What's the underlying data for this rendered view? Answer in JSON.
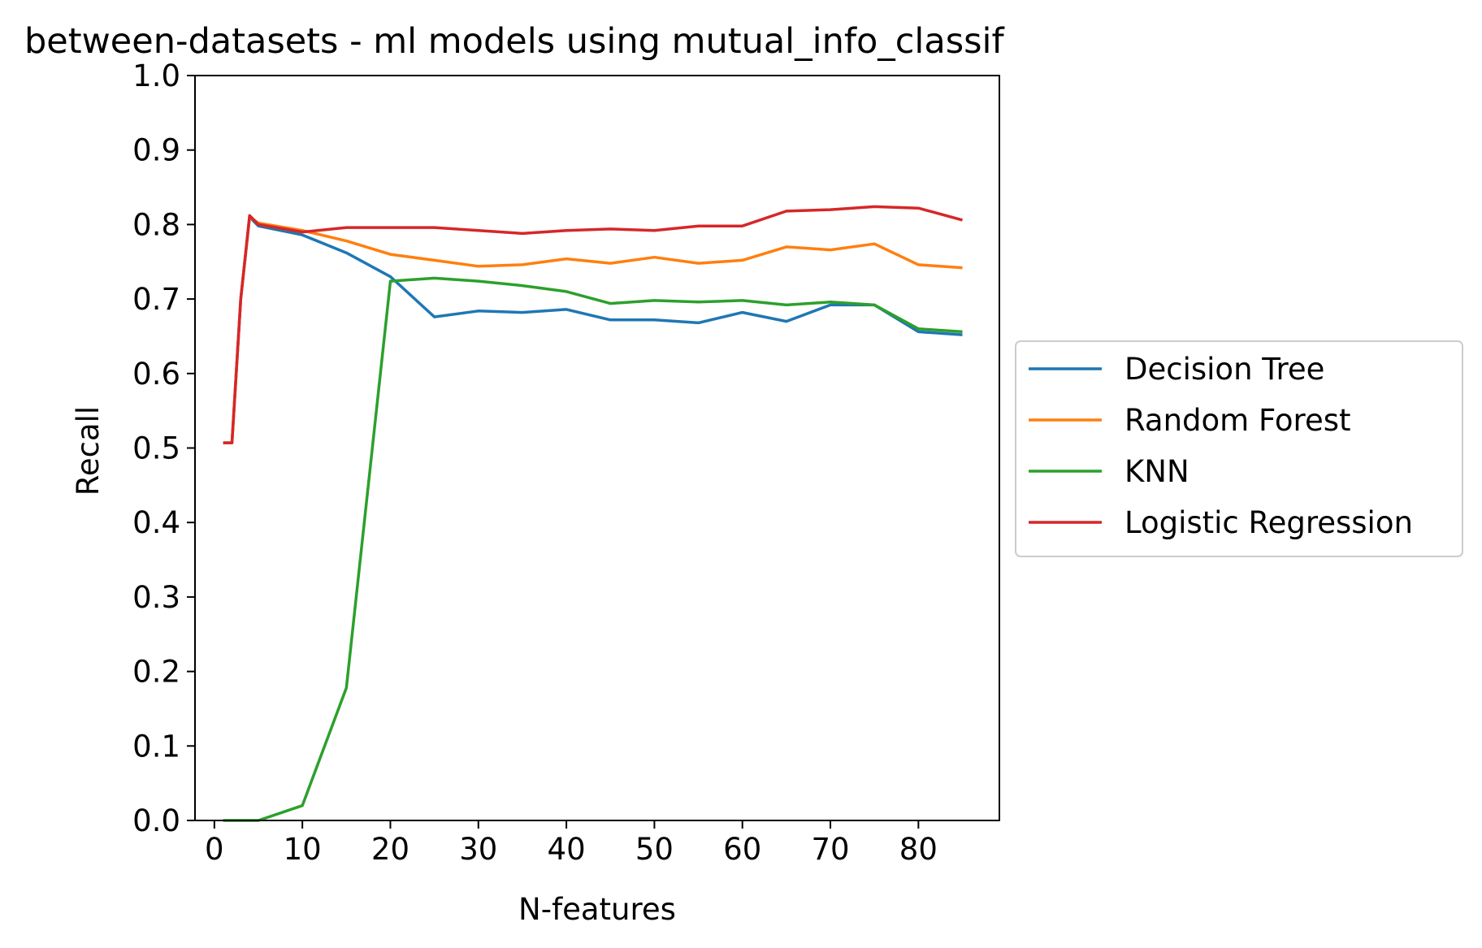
{
  "chart_data": {
    "type": "line",
    "title": "between-datasets - ml models using mutual_info_classif",
    "xlabel": "N-features",
    "ylabel": "Recall",
    "xlim": [
      -2.2,
      89.2
    ],
    "ylim": [
      0.0,
      1.0
    ],
    "xticks": [
      0,
      10,
      20,
      30,
      40,
      50,
      60,
      70,
      80
    ],
    "yticks": [
      0.0,
      0.1,
      0.2,
      0.3,
      0.4,
      0.5,
      0.6,
      0.7,
      0.8,
      0.9,
      1.0
    ],
    "xtick_labels": [
      "0",
      "10",
      "20",
      "30",
      "40",
      "50",
      "60",
      "70",
      "80"
    ],
    "ytick_labels": [
      "0.0",
      "0.1",
      "0.2",
      "0.3",
      "0.4",
      "0.5",
      "0.6",
      "0.7",
      "0.8",
      "0.9",
      "1.0"
    ],
    "grid": false,
    "legend_position": "outside-right",
    "series": [
      {
        "name": "Decision Tree",
        "color": "#1f77b4",
        "x": [
          1,
          2,
          3,
          4,
          5,
          10,
          15,
          20,
          25,
          30,
          35,
          40,
          45,
          50,
          55,
          60,
          65,
          70,
          75,
          80,
          85
        ],
        "values": [
          0.507,
          0.507,
          0.7,
          0.81,
          0.798,
          0.786,
          0.762,
          0.73,
          0.676,
          0.684,
          0.682,
          0.686,
          0.672,
          0.672,
          0.668,
          0.682,
          0.67,
          0.692,
          0.692,
          0.656,
          0.652
        ]
      },
      {
        "name": "Random Forest",
        "color": "#ff7f0e",
        "x": [
          1,
          2,
          3,
          4,
          5,
          10,
          15,
          20,
          25,
          30,
          35,
          40,
          45,
          50,
          55,
          60,
          65,
          70,
          75,
          80,
          85
        ],
        "values": [
          0.507,
          0.507,
          0.7,
          0.81,
          0.802,
          0.792,
          0.778,
          0.76,
          0.752,
          0.744,
          0.746,
          0.754,
          0.748,
          0.756,
          0.748,
          0.752,
          0.77,
          0.766,
          0.774,
          0.746,
          0.742
        ]
      },
      {
        "name": "KNN",
        "color": "#2ca02c",
        "x": [
          1,
          5,
          10,
          15,
          20,
          25,
          30,
          35,
          40,
          45,
          50,
          55,
          60,
          65,
          70,
          75,
          80,
          85
        ],
        "values": [
          0.0,
          0.0,
          0.02,
          0.178,
          0.724,
          0.728,
          0.724,
          0.718,
          0.71,
          0.694,
          0.698,
          0.696,
          0.698,
          0.692,
          0.696,
          0.692,
          0.66,
          0.656
        ]
      },
      {
        "name": "Logistic Regression",
        "color": "#d62728",
        "x": [
          1,
          2,
          3,
          4,
          5,
          10,
          15,
          20,
          25,
          30,
          35,
          40,
          45,
          50,
          55,
          60,
          65,
          70,
          75,
          80,
          85
        ],
        "values": [
          0.507,
          0.507,
          0.7,
          0.812,
          0.8,
          0.79,
          0.796,
          0.796,
          0.796,
          0.792,
          0.788,
          0.792,
          0.794,
          0.792,
          0.798,
          0.798,
          0.818,
          0.82,
          0.824,
          0.822,
          0.806
        ]
      }
    ]
  }
}
